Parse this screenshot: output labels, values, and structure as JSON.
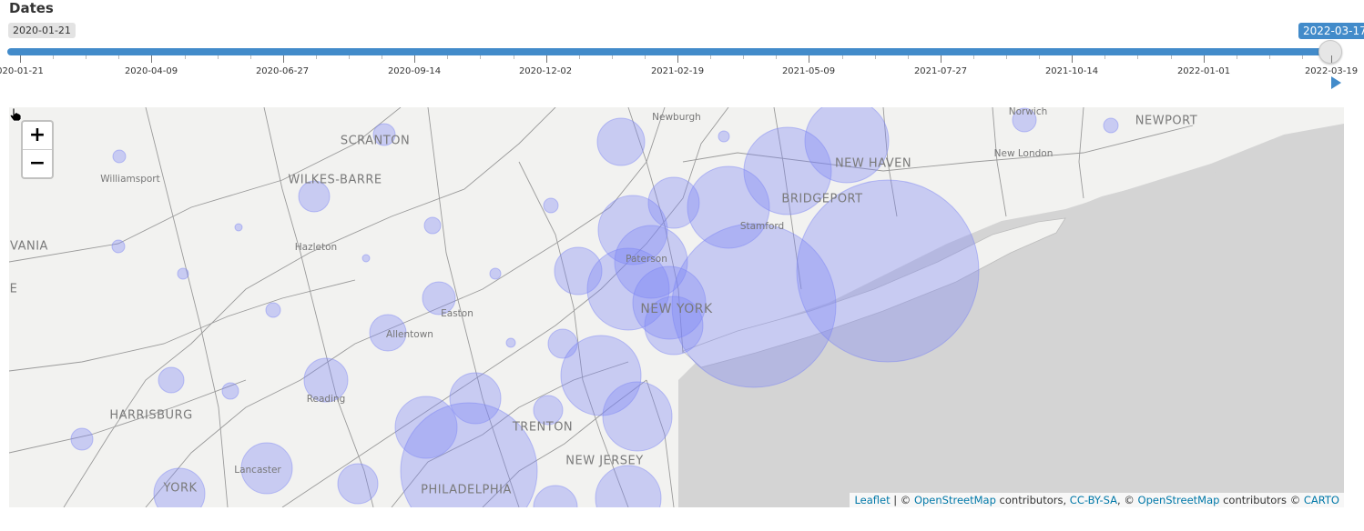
{
  "slider": {
    "title": "Dates",
    "min_label": "2020-01-21",
    "max_label": "2022-03-17",
    "value_fraction": 1.0,
    "tick_labels": [
      "020-01-21",
      "2020-04-09",
      "2020-06-27",
      "2020-09-14",
      "2020-12-02",
      "2021-02-19",
      "2021-05-09",
      "2021-07-27",
      "2021-10-14",
      "2022-01-01",
      "2022-03-19"
    ]
  },
  "map": {
    "zoom_in_label": "+",
    "zoom_out_label": "−",
    "marker_color": "#7b83f5",
    "water_color": "#d4d4d4",
    "land_color": "#f2f2f0",
    "places": {
      "scranton": "SCRANTON",
      "wilkes_barre": "WILKES-BARRE",
      "williamsport": "Williamsport",
      "hazleton": "Hazleton",
      "vania": "VANIA",
      "e_edge": "E",
      "allentown": "Allentown",
      "easton": "Easton",
      "reading": "Reading",
      "harrisburg": "HARRISBURG",
      "lancaster": "Lancaster",
      "york": "YORK",
      "philadelphia": "PHILADELPHIA",
      "trenton": "TRENTON",
      "new_jersey": "NEW JERSEY",
      "paterson": "Paterson",
      "new_york": "NEW YORK",
      "stamford": "Stamford",
      "bridgeport": "BRIDGEPORT",
      "new_haven": "NEW HAVEN",
      "newburgh": "Newburgh",
      "norwich": "Norwich",
      "new_london": "New London",
      "newport": "NEWPORT"
    },
    "attribution": {
      "leaflet": "Leaflet",
      "sep1": " | © ",
      "osm1": "OpenStreetMap",
      "contrib1": " contributors, ",
      "ccbysa": "CC-BY-SA",
      "sep2": ", © ",
      "osm2": "OpenStreetMap",
      "contrib2": " contributors © ",
      "carto": "CARTO"
    }
  }
}
